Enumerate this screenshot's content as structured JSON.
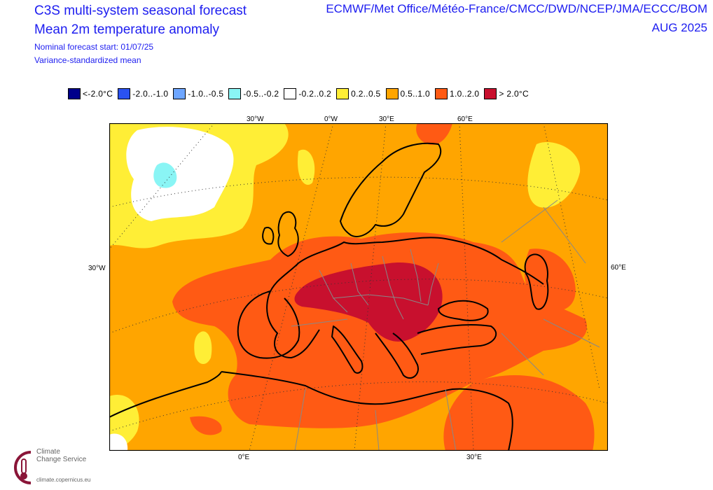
{
  "header": {
    "title_line1": "C3S multi-system seasonal forecast",
    "title_line2": "Mean 2m temperature anomaly",
    "start_info": "Nominal forecast start: 01/07/25",
    "method": "Variance-standardized mean",
    "systems": "ECMWF/Met Office/Météo-France/CMCC/DWD/NCEP/JMA/ECCC/BOM",
    "period": "AUG 2025"
  },
  "legend": [
    {
      "label": "<-2.0°C",
      "color": "#00008b"
    },
    {
      "label": "-2.0..-1.0",
      "color": "#2a52f0"
    },
    {
      "label": "-1.0..-0.5",
      "color": "#6ea6ff"
    },
    {
      "label": "-0.5..-0.2",
      "color": "#8af5f5"
    },
    {
      "label": "-0.2..0.2",
      "color": "#ffffff"
    },
    {
      "label": "0.2..0.5",
      "color": "#ffee36"
    },
    {
      "label": "0.5..1.0",
      "color": "#ffa500"
    },
    {
      "label": "1.0..2.0",
      "color": "#ff5a14"
    },
    {
      "label": "> 2.0°C",
      "color": "#c8102e"
    }
  ],
  "axes": {
    "top": [
      "30°W",
      "0°W",
      "30°E",
      "60°E"
    ],
    "left": "30°W",
    "right": "60°E",
    "bottom": [
      "0°E",
      "30°E"
    ]
  },
  "logo": {
    "line1": "Climate",
    "line2": "Change Service",
    "url": "climate.copernicus.eu"
  }
}
